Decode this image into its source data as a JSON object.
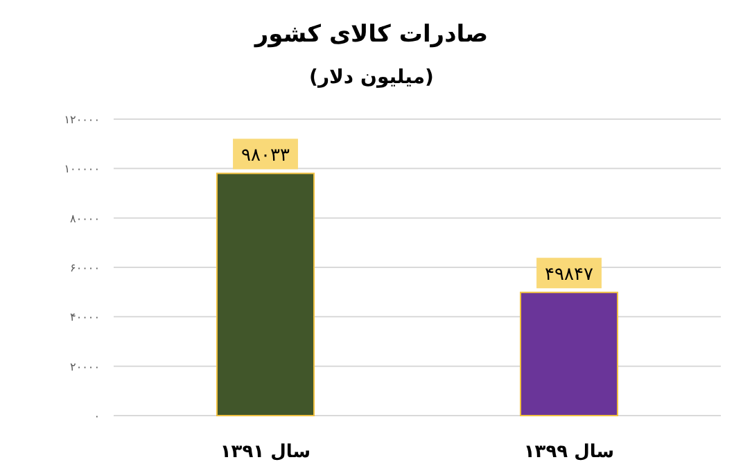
{
  "chart_data": {
    "type": "bar",
    "title": "صادرات کالای کشور",
    "subtitle": "(میلیون دلار)",
    "categories": [
      "سال ۱۳۹۱",
      "سال ۱۳۹۹"
    ],
    "values": [
      98033,
      49847
    ],
    "colors": [
      "#41562a",
      "#6a3599"
    ],
    "value_labels": [
      "۹۸۰۳۳",
      "۴۹۸۴۷"
    ],
    "ylim": [
      0,
      120000
    ],
    "yticks": [
      {
        "value": 0,
        "label": "۰"
      },
      {
        "value": 20000,
        "label": "۲۰۰۰۰"
      },
      {
        "value": 40000,
        "label": "۴۰۰۰۰"
      },
      {
        "value": 60000,
        "label": "۶۰۰۰۰"
      },
      {
        "value": 80000,
        "label": "۸۰۰۰۰"
      },
      {
        "value": 100000,
        "label": "۱۰۰۰۰۰"
      },
      {
        "value": 120000,
        "label": "۱۲۰۰۰۰"
      }
    ],
    "grid": "y"
  }
}
